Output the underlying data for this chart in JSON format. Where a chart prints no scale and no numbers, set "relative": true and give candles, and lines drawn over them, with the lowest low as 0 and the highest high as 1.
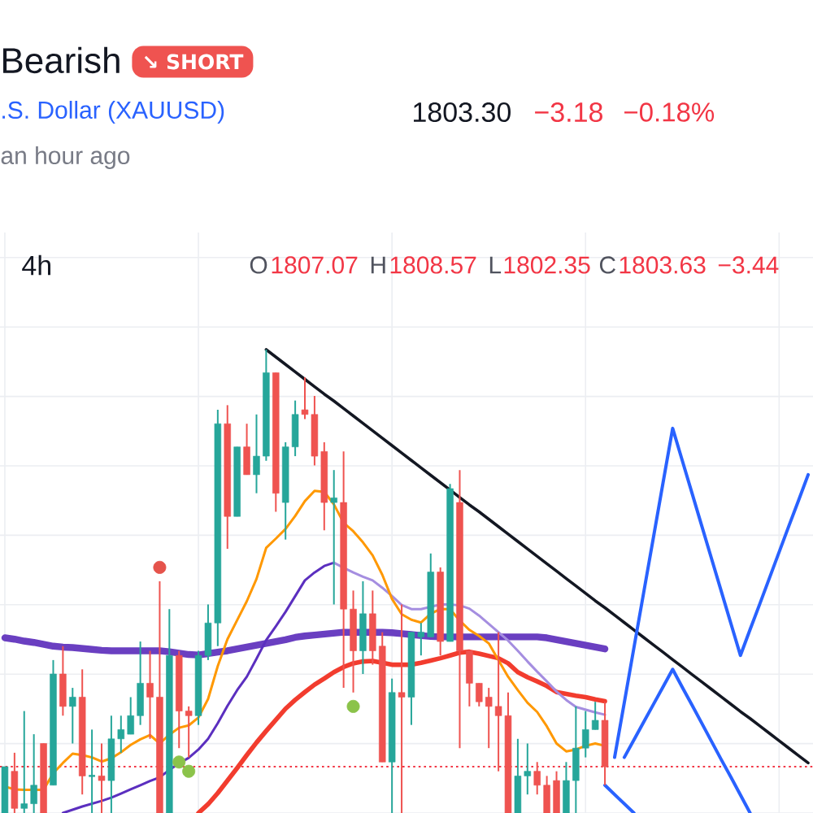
{
  "chart_data": {
    "type": "candlestick",
    "relative": true,
    "grid": true,
    "title": "Bearish",
    "subtitle": ".S. Dollar (XAUUSD)",
    "annotations": [
      "↘ SHORT",
      "1803.30",
      "−3.18",
      "−0.18%",
      "an hour ago",
      "4h",
      "O",
      "1807.07",
      "H",
      "1808.57",
      "L",
      "1802.35",
      "C",
      "1803.63",
      "−3.44"
    ],
    "categories": [
      null,
      null,
      null,
      null,
      null,
      null,
      null,
      null,
      null,
      null,
      null,
      null,
      null,
      null,
      null,
      null,
      null,
      null,
      null,
      null,
      null,
      null,
      null,
      null,
      null,
      null,
      null,
      null,
      null,
      null,
      null,
      null,
      null,
      null,
      null,
      null,
      null,
      null,
      null,
      null,
      null,
      null,
      null,
      null,
      null,
      null,
      null,
      null,
      null,
      null,
      null,
      null,
      null,
      null,
      null,
      null,
      null,
      null,
      null,
      null,
      null,
      null,
      null,
      null,
      null,
      null,
      null,
      null,
      null,
      null,
      null,
      null,
      null,
      null,
      null,
      null,
      null,
      null,
      null,
      null,
      null,
      null,
      null,
      null
    ],
    "ohlc": [
      [
        0,
        0.1,
        0,
        0.1
      ],
      [
        0.09,
        0.13,
        0,
        0.01
      ],
      [
        0.01,
        0.22,
        0,
        0.02
      ],
      [
        0.02,
        0.17,
        0,
        0.06
      ],
      [
        0.15,
        0.15,
        0,
        0
      ],
      [
        0.06,
        0.33,
        0.06,
        0.3
      ],
      [
        0.3,
        0.36,
        0.21,
        0.23
      ],
      [
        0.23,
        0.27,
        0.15,
        0.25
      ],
      [
        0.25,
        0.31,
        0.04,
        0.08
      ],
      [
        0.08,
        0.18,
        0,
        0.08
      ],
      [
        0.08,
        0.15,
        0,
        0.07
      ],
      [
        0.07,
        0.21,
        0,
        0.16
      ],
      [
        0.16,
        0.21,
        0.13,
        0.18
      ],
      [
        0.17,
        0.25,
        0.17,
        0.21
      ],
      [
        0.21,
        0.37,
        0.19,
        0.28
      ],
      [
        0.28,
        0.35,
        0.16,
        0.25
      ],
      [
        0.25,
        0.5,
        0,
        0
      ],
      [
        0,
        0.44,
        0,
        0.34
      ],
      [
        0.34,
        0.35,
        0.14,
        0.22
      ],
      [
        0.22,
        0.23,
        0.12,
        0.21
      ],
      [
        0.21,
        0.35,
        0.19,
        0.34
      ],
      [
        0.34,
        0.45,
        0.33,
        0.41
      ],
      [
        0.41,
        0.87,
        0.36,
        0.84
      ],
      [
        0.84,
        0.88,
        0.57,
        0.64
      ],
      [
        0.64,
        0.79,
        0.64,
        0.79
      ],
      [
        0.79,
        0.84,
        0.73,
        0.73
      ],
      [
        0.73,
        0.86,
        0.69,
        0.77
      ],
      [
        0.77,
        1,
        0.76,
        0.95
      ],
      [
        0.95,
        0.95,
        0.65,
        0.69
      ],
      [
        0.67,
        0.8,
        0.59,
        0.79
      ],
      [
        0.79,
        0.89,
        0.77,
        0.86
      ],
      [
        0.87,
        0.94,
        0.85,
        0.86
      ],
      [
        0.86,
        0.9,
        0.75,
        0.77
      ],
      [
        0.78,
        0.8,
        0.61,
        0.67
      ],
      [
        0.67,
        0.74,
        0.45,
        0.68
      ],
      [
        0.67,
        0.78,
        0.27,
        0.44
      ],
      [
        0.44,
        0.48,
        0.26,
        0.35
      ],
      [
        0.35,
        0.5,
        0.3,
        0.43
      ],
      [
        0.43,
        0.48,
        0.32,
        0.35
      ],
      [
        0.36,
        0.39,
        0.11,
        0.11
      ],
      [
        0.11,
        0.29,
        0,
        0.26
      ],
      [
        0.26,
        0.45,
        0,
        0.25
      ],
      [
        0.25,
        0.39,
        0.19,
        0.39
      ],
      [
        0.38,
        0.41,
        0.34,
        0.39
      ],
      [
        0.38,
        0.56,
        0.38,
        0.52
      ],
      [
        0.52,
        0.53,
        0.34,
        0.37
      ],
      [
        0.37,
        0.71,
        0.37,
        0.7
      ],
      [
        0.67,
        0.74,
        0.14,
        0.35
      ],
      [
        0.35,
        0.35,
        0.23,
        0.28
      ],
      [
        0.28,
        0.28,
        0.23,
        0.24
      ],
      [
        0.25,
        0.27,
        0.14,
        0.23
      ],
      [
        0.23,
        0.39,
        0.09,
        0.21
      ],
      [
        0.21,
        0.26,
        0,
        0
      ],
      [
        0,
        0.16,
        0,
        0.08
      ],
      [
        0.08,
        0.15,
        0.04,
        0.09
      ],
      [
        0.09,
        0.11,
        0.04,
        0.06
      ],
      [
        0.06,
        0.08,
        0,
        0
      ],
      [
        0.07,
        0.09,
        0,
        0
      ],
      [
        0,
        0.11,
        0,
        0.07
      ],
      [
        0.07,
        0.23,
        0,
        0.14
      ],
      [
        0.14,
        0.22,
        0.12,
        0.18
      ],
      [
        0.18,
        0.24,
        0.18,
        0.2
      ],
      [
        0.2,
        0.24,
        0.06,
        0.1
      ],
      null,
      null,
      null,
      null,
      null,
      null,
      null,
      null,
      null,
      null,
      null,
      null,
      null,
      null,
      null,
      null,
      null,
      null,
      null,
      null,
      null
    ],
    "colors": [
      "#26a69a",
      "#ef5350",
      "#26a69a",
      "#26a69a",
      "#ef5350",
      "#26a69a",
      "#ef5350",
      "#26a69a",
      "#ef5350",
      "#26a69a",
      "#ef5350",
      "#26a69a",
      "#26a69a",
      "#26a69a",
      "#26a69a",
      "#ef5350",
      "#ef5350",
      "#26a69a",
      "#ef5350",
      "#ef5350",
      "#26a69a",
      "#26a69a",
      "#26a69a",
      "#ef5350",
      "#26a69a",
      "#ef5350",
      "#26a69a",
      "#26a69a",
      "#ef5350",
      "#26a69a",
      "#26a69a",
      "#ef5350",
      "#ef5350",
      "#ef5350",
      "#26a69a",
      "#ef5350",
      "#ef5350",
      "#26a69a",
      "#ef5350",
      "#ef5350",
      "#26a69a",
      "#ef5350",
      "#26a69a",
      "#26a69a",
      "#26a69a",
      "#ef5350",
      "#26a69a",
      "#ef5350",
      "#ef5350",
      "#ef5350",
      "#ef5350",
      "#ef5350",
      "#ef5350",
      "#26a69a",
      "#26a69a",
      "#ef5350",
      "#ef5350",
      "#ef5350",
      "#26a69a",
      "#26a69a",
      "#26a69a",
      "#26a69a",
      "#ef5350",
      null,
      null,
      null,
      null,
      null,
      null,
      null,
      null,
      null,
      null,
      null,
      null,
      null,
      null,
      null,
      null,
      null,
      null,
      null,
      null,
      null
    ],
    "series": [
      {
        "type": "line",
        "color": "#6a3fc1",
        "values": [
          0.378,
          0.375,
          0.371,
          0.368,
          0.364,
          0.36,
          0.358,
          0.357,
          0.355,
          0.353,
          0.351,
          0.35,
          0.35,
          0.35,
          0.35,
          0.35,
          0.35,
          0.348,
          0.345,
          0.342,
          0.341,
          0.344,
          0.347,
          0.35,
          0.354,
          0.358,
          0.362,
          0.366,
          0.37,
          0.374,
          0.379,
          0.382,
          0.384,
          0.386,
          0.388,
          0.39,
          0.39,
          0.39,
          0.39,
          0.39,
          0.389,
          0.387,
          0.385,
          0.383,
          0.381,
          0.38,
          0.38,
          0.38,
          0.38,
          0.38,
          0.38,
          0.38,
          0.38,
          0.38,
          0.38,
          0.38,
          0.378,
          0.374,
          0.37,
          0.366,
          0.362,
          0.358,
          0.354,
          null,
          null,
          null,
          null,
          null,
          null,
          null,
          null,
          null,
          null,
          null,
          null,
          null,
          null,
          null,
          null,
          null,
          null,
          null,
          null,
          null
        ]
      },
      {
        "type": "line",
        "color": "#f23c2e",
        "values": [
          null,
          null,
          null,
          null,
          null,
          null,
          null,
          null,
          null,
          null,
          null,
          null,
          null,
          null,
          null,
          null,
          null,
          null,
          null,
          null,
          0,
          0.019,
          0.043,
          0.07,
          0.097,
          0.125,
          0.152,
          0.177,
          0.201,
          0.225,
          0.244,
          0.261,
          0.277,
          0.29,
          0.304,
          0.315,
          0.323,
          0.327,
          0.328,
          0.324,
          0.32,
          0.32,
          0.32,
          0.324,
          0.329,
          0.334,
          0.34,
          0.346,
          0.348,
          0.344,
          0.339,
          0.334,
          0.323,
          0.304,
          0.293,
          0.284,
          0.274,
          0.261,
          0.257,
          0.253,
          0.25,
          0.245,
          0.241,
          null,
          null,
          null,
          null,
          null,
          null,
          null,
          null,
          null,
          null,
          null,
          null,
          null,
          null,
          null,
          null,
          null,
          null,
          null,
          null,
          null
        ]
      },
      {
        "type": "line",
        "color": "#5b2fbf",
        "values": [
          null,
          null,
          null,
          null,
          null,
          null,
          0,
          0.007,
          0.014,
          0.02,
          0.026,
          0.033,
          0.042,
          0.051,
          0.06,
          0.069,
          0.077,
          0.093,
          0.107,
          0.119,
          0.137,
          0.16,
          0.194,
          0.231,
          0.265,
          0.294,
          0.333,
          0.373,
          0.403,
          0.434,
          0.468,
          0.502,
          0.519,
          0.533,
          0.54,
          null,
          null,
          null,
          null,
          null,
          null,
          null,
          null,
          null,
          null,
          null,
          null,
          null,
          null,
          null,
          null,
          null,
          null,
          null,
          null,
          null,
          null,
          null,
          null,
          null,
          null,
          null,
          null,
          null,
          null,
          null,
          null,
          null,
          null,
          null,
          null,
          null,
          null,
          null,
          null,
          null,
          null,
          null,
          null,
          null,
          null,
          null,
          null,
          null
        ]
      },
      {
        "type": "line",
        "color": "#a58ee0",
        "values": [
          null,
          null,
          null,
          null,
          null,
          null,
          null,
          null,
          null,
          null,
          null,
          null,
          null,
          null,
          null,
          null,
          null,
          null,
          null,
          null,
          null,
          null,
          null,
          null,
          null,
          null,
          null,
          null,
          null,
          null,
          null,
          null,
          null,
          null,
          0.54,
          0.529,
          0.519,
          0.51,
          0.502,
          0.486,
          0.468,
          0.449,
          0.44,
          0.44,
          0.445,
          0.45,
          0.45,
          0.448,
          0.441,
          0.426,
          0.408,
          0.39,
          0.372,
          0.35,
          0.327,
          0.305,
          0.284,
          0.262,
          0.244,
          0.229,
          0.223,
          0.217,
          0.212,
          null,
          null,
          null,
          null,
          null,
          null,
          null,
          null,
          null,
          null,
          null,
          null,
          null,
          null,
          null,
          null,
          null,
          null,
          null,
          null,
          null
        ]
      },
      {
        "type": "line",
        "color": "#ff9800",
        "values": [
          0.057,
          0.051,
          0.05,
          0.05,
          0.05,
          0.086,
          0.108,
          0.128,
          0.125,
          0.12,
          0.111,
          0.118,
          0.131,
          0.147,
          0.159,
          0.168,
          0.15,
          0.169,
          0.184,
          0.189,
          0.206,
          0.246,
          0.317,
          0.375,
          0.416,
          0.457,
          0.505,
          0.572,
          0.592,
          0.613,
          0.641,
          0.673,
          0.695,
          0.693,
          0.666,
          0.626,
          0.608,
          0.584,
          0.556,
          0.514,
          0.462,
          0.429,
          0.417,
          0.411,
          0.43,
          0.44,
          0.44,
          0.415,
          0.395,
          0.382,
          0.366,
          0.33,
          0.294,
          0.265,
          0.238,
          0.218,
          0.187,
          0.15,
          0.133,
          0.137,
          0.145,
          0.15,
          0.145,
          null,
          null,
          null,
          null,
          null,
          null,
          null,
          null,
          null,
          null,
          null,
          null,
          null,
          null,
          null,
          null,
          null,
          null,
          null,
          null,
          null
        ]
      },
      {
        "type": "line",
        "color": "#131722",
        "values": [
          null,
          null,
          null,
          null,
          null,
          null,
          null,
          null,
          null,
          null,
          null,
          null,
          null,
          null,
          null,
          null,
          null,
          null,
          null,
          null,
          null,
          null,
          null,
          null,
          null,
          null,
          null,
          1,
          0.984,
          0.968,
          0.952,
          0.936,
          0.92,
          0.904,
          0.889,
          0.873,
          0.857,
          0.841,
          0.825,
          0.809,
          0.793,
          0.777,
          0.761,
          0.745,
          0.729,
          0.713,
          0.697,
          0.681,
          0.665,
          0.65,
          0.634,
          0.618,
          0.602,
          0.586,
          0.57,
          0.554,
          0.538,
          0.522,
          0.506,
          0.49,
          0.474,
          0.458,
          0.443,
          0.427,
          0.411,
          0.395,
          0.379,
          0.363,
          0.347,
          0.331,
          0.315,
          0.299,
          0.283,
          0.267,
          0.251,
          0.235,
          0.219,
          0.204,
          0.188,
          0.172,
          0.156,
          0.14,
          0.124,
          0.108
        ]
      },
      {
        "type": "line",
        "color": "#2962ff",
        "values": [
          null,
          null,
          null,
          null,
          null,
          null,
          null,
          null,
          null,
          null,
          null,
          null,
          null,
          null,
          null,
          null,
          null,
          null,
          null,
          null,
          null,
          null,
          null,
          null,
          null,
          null,
          null,
          null,
          null,
          null,
          null,
          null,
          null,
          null,
          null,
          null,
          null,
          null,
          null,
          null,
          null,
          null,
          null,
          null,
          null,
          null,
          null,
          null,
          null,
          null,
          null,
          null,
          null,
          null,
          null,
          null,
          null,
          null,
          null,
          null,
          null,
          null,
          null,
          0.12,
          0.238,
          0.357,
          0.475,
          0.593,
          0.712,
          0.83,
          0.76,
          0.69,
          0.62,
          0.55,
          0.48,
          0.41,
          0.34,
          0.396,
          0.451,
          0.507,
          0.563,
          0.619,
          0.674,
          0.73
        ]
      },
      {
        "type": "line",
        "color": "#2962ff",
        "values": [
          null,
          null,
          null,
          null,
          null,
          null,
          null,
          null,
          null,
          null,
          null,
          null,
          null,
          null,
          null,
          null,
          null,
          null,
          null,
          null,
          null,
          null,
          null,
          null,
          null,
          null,
          null,
          null,
          null,
          null,
          null,
          null,
          null,
          null,
          null,
          null,
          null,
          null,
          null,
          null,
          null,
          null,
          null,
          null,
          null,
          null,
          null,
          null,
          null,
          null,
          null,
          null,
          null,
          null,
          null,
          null,
          null,
          null,
          null,
          null,
          null,
          null,
          null,
          null,
          0.12,
          0.158,
          0.196,
          0.234,
          0.272,
          0.31,
          0.271,
          0.233,
          0.194,
          0.155,
          0.116,
          0.078,
          0.039,
          0,
          null,
          null,
          null,
          null,
          null,
          null
        ]
      },
      {
        "type": "line",
        "color": "#2962ff",
        "values": [
          null,
          null,
          null,
          null,
          null,
          null,
          null,
          null,
          null,
          null,
          null,
          null,
          null,
          null,
          null,
          null,
          null,
          null,
          null,
          null,
          null,
          null,
          null,
          null,
          null,
          null,
          null,
          null,
          null,
          null,
          null,
          null,
          null,
          null,
          null,
          null,
          null,
          null,
          null,
          null,
          null,
          null,
          null,
          null,
          null,
          null,
          null,
          null,
          null,
          null,
          null,
          null,
          null,
          null,
          null,
          null,
          null,
          null,
          null,
          null,
          null,
          null,
          0.06,
          0.04,
          0.02,
          0,
          null,
          null,
          null,
          null,
          null,
          null,
          null,
          null,
          null,
          null,
          null,
          null,
          null,
          null,
          null,
          null,
          null,
          null
        ]
      },
      {
        "type": "scatter",
        "color": "#e5534b",
        "marker": "circle",
        "values": [
          null,
          null,
          null,
          null,
          null,
          null,
          null,
          null,
          null,
          null,
          null,
          null,
          null,
          null,
          null,
          null,
          0.53,
          null,
          null,
          null,
          null,
          null,
          null,
          null,
          null,
          null,
          null,
          null,
          null,
          null,
          null,
          null,
          null,
          null,
          null,
          null,
          null,
          null,
          null,
          null,
          null,
          null,
          null,
          null,
          null,
          null,
          null,
          null,
          null,
          null,
          null,
          null,
          null,
          null,
          null,
          null,
          null,
          null,
          null,
          null,
          null,
          null,
          null,
          null,
          null,
          null,
          null,
          null,
          null,
          null,
          null,
          null,
          null,
          null,
          null,
          null,
          null,
          null,
          null,
          null,
          null,
          null,
          null,
          null
        ]
      },
      {
        "type": "scatter",
        "color": "#8bc34a",
        "marker": "circle",
        "values": [
          null,
          null,
          null,
          null,
          null,
          null,
          null,
          null,
          null,
          null,
          null,
          null,
          null,
          null,
          null,
          null,
          null,
          null,
          0.11,
          0.09,
          null,
          null,
          null,
          null,
          null,
          null,
          null,
          null,
          null,
          null,
          null,
          null,
          null,
          null,
          null,
          null,
          0.23,
          null,
          null,
          null,
          null,
          null,
          null,
          null,
          null,
          null,
          null,
          null,
          null,
          null,
          null,
          null,
          null,
          null,
          null,
          null,
          null,
          null,
          null,
          null,
          null,
          null,
          null,
          null,
          null,
          null,
          null,
          null,
          null,
          null,
          null,
          null,
          null,
          null,
          null,
          null,
          null,
          null,
          null,
          null,
          null,
          null,
          null,
          null
        ]
      }
    ],
    "ref_lines": [
      {
        "axis": "y",
        "value": 0.1,
        "color": "#f23645",
        "line_style": "dotted"
      }
    ]
  }
}
